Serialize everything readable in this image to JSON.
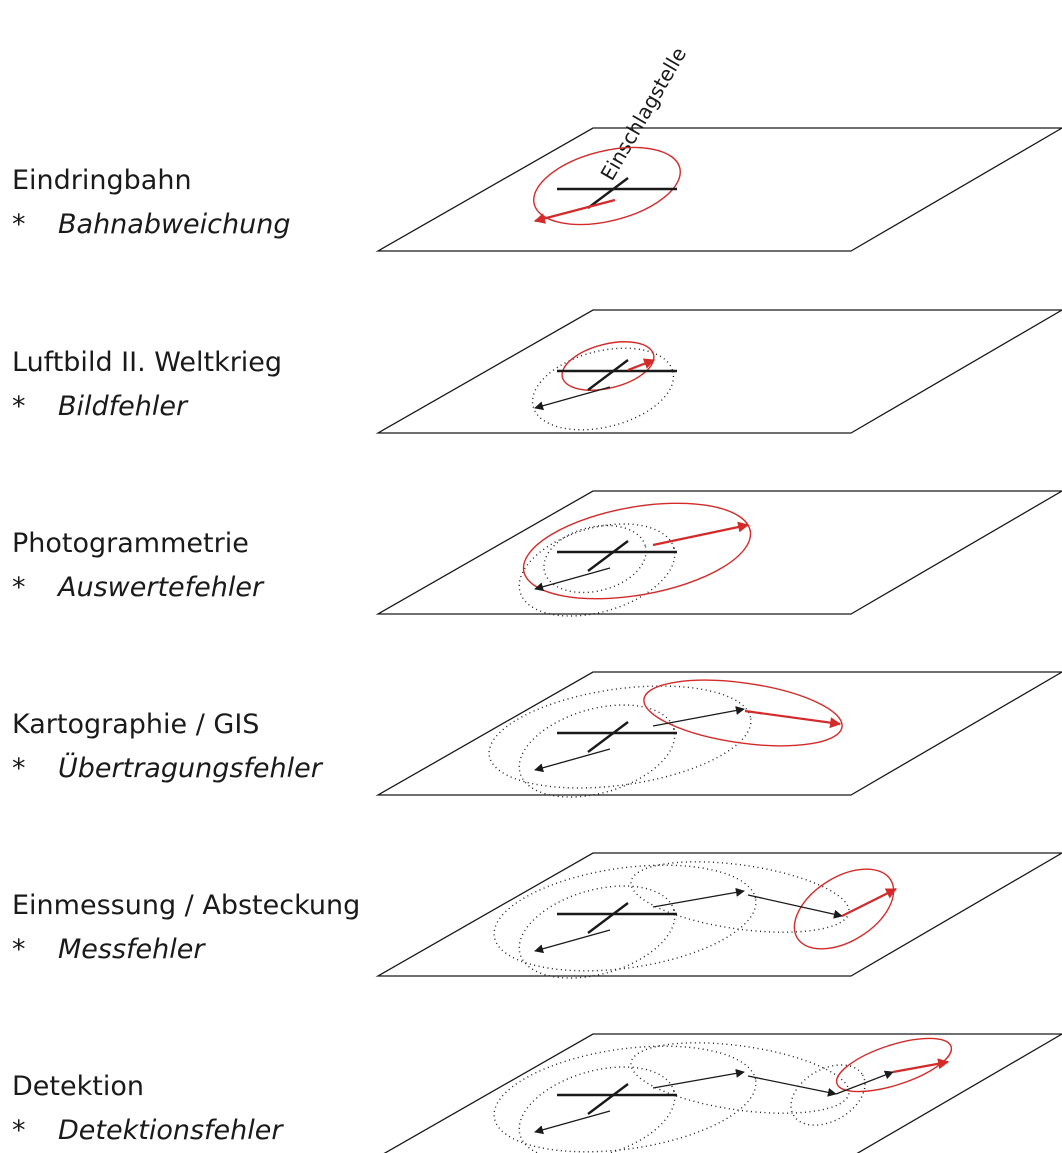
{
  "impact_label": "Einschlagstelle",
  "bullet": "*",
  "colors": {
    "current_error": "#d42a2a",
    "prior_error": "#1a1a1a",
    "plane": "#1a1a1a"
  },
  "stages": [
    {
      "title": "Eindringbahn",
      "error": "Bahnabweichung"
    },
    {
      "title": "Luftbild II. Weltkrieg",
      "error": "Bildfehler"
    },
    {
      "title": "Photogrammetrie",
      "error": "Auswertefehler"
    },
    {
      "title": "Kartographie / GIS",
      "error": "Übertragungsfehler"
    },
    {
      "title": "Einmessung / Absteckung",
      "error": "Messfehler"
    },
    {
      "title": "Detektion",
      "error": "Detektionsfehler"
    }
  ]
}
